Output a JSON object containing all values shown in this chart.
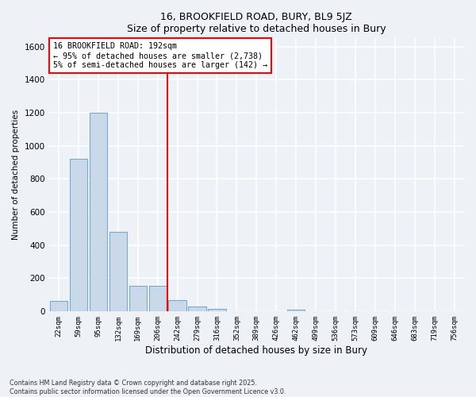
{
  "title1": "16, BROOKFIELD ROAD, BURY, BL9 5JZ",
  "title2": "Size of property relative to detached houses in Bury",
  "bar_labels": [
    "22sqm",
    "59sqm",
    "95sqm",
    "132sqm",
    "169sqm",
    "206sqm",
    "242sqm",
    "279sqm",
    "316sqm",
    "352sqm",
    "389sqm",
    "426sqm",
    "462sqm",
    "499sqm",
    "536sqm",
    "573sqm",
    "609sqm",
    "646sqm",
    "683sqm",
    "719sqm",
    "756sqm"
  ],
  "bar_values": [
    60,
    920,
    1200,
    480,
    155,
    155,
    65,
    30,
    15,
    0,
    0,
    0,
    10,
    0,
    0,
    0,
    0,
    0,
    0,
    0,
    0
  ],
  "bar_color": "#c9d9ea",
  "bar_edge_color": "#7aaac8",
  "vline_x": 5.5,
  "vline_color": "red",
  "annotation_line1": "16 BROOKFIELD ROAD: 192sqm",
  "annotation_line2": "← 95% of detached houses are smaller (2,738)",
  "annotation_line3": "5% of semi-detached houses are larger (142) →",
  "xlabel": "Distribution of detached houses by size in Bury",
  "ylabel": "Number of detached properties",
  "ylim": [
    0,
    1650
  ],
  "yticks": [
    0,
    200,
    400,
    600,
    800,
    1000,
    1200,
    1400,
    1600
  ],
  "bg_color": "#eef2f7",
  "grid_color": "#ffffff",
  "footnote1": "Contains HM Land Registry data © Crown copyright and database right 2025.",
  "footnote2": "Contains public sector information licensed under the Open Government Licence v3.0."
}
